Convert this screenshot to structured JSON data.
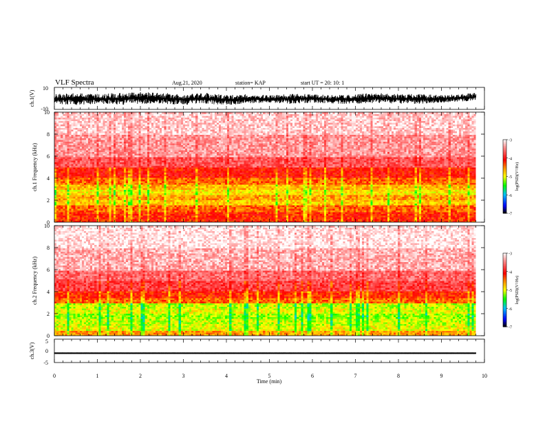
{
  "header": {
    "title": "VLF Spectra",
    "date": "Aug.21, 2020",
    "station": "station= KAP",
    "start": "start  UT =   20: 10: 1"
  },
  "colorbar": {
    "label": "log(PSD)(V²/Hz)",
    "ticks": [
      "-3",
      "-4",
      "-5",
      "-6",
      "-7"
    ],
    "colors": [
      "#ffffff",
      "#ff7f7f",
      "#ff0000",
      "#ffa000",
      "#ffff00",
      "#00ff00",
      "#00c0ff",
      "#0000ff",
      "#000000"
    ]
  },
  "chart_data": [
    {
      "type": "line",
      "name": "ch1-waveform",
      "ylabel": "ch.1(V)",
      "ylim": [
        -10,
        10
      ],
      "yticks": [
        "10",
        "-10"
      ],
      "xlim": [
        0,
        10
      ],
      "x": [
        0,
        0.5,
        1,
        1.5,
        2,
        2.5,
        3,
        3.5,
        4,
        4.5,
        5,
        5.5,
        6,
        6.5,
        7,
        7.5,
        8,
        8.5,
        9,
        9.5,
        9.8
      ],
      "envelope_upper": [
        4,
        5,
        4,
        5,
        6,
        5,
        4,
        5,
        3,
        4,
        3,
        4,
        4,
        3,
        4,
        5,
        4,
        4,
        3,
        4,
        5
      ],
      "envelope_lower": [
        -5,
        -6,
        -5,
        -6,
        -5,
        -5,
        -6,
        -5,
        -6,
        -5,
        -4,
        -5,
        -4,
        -5,
        -5,
        -4,
        -5,
        -5,
        -4,
        -3,
        -2
      ]
    },
    {
      "type": "heatmap",
      "name": "ch1-spectrogram",
      "ylabel": "ch.1 Frequency (kHz)",
      "xlim": [
        0,
        10
      ],
      "ylim": [
        0,
        10
      ],
      "yticks": [
        "0",
        "2",
        "4",
        "6",
        "8",
        "10"
      ],
      "log_psd_range": [
        -7,
        -3
      ],
      "frequency_bands_kHz": [
        0,
        1,
        1.5,
        2,
        2.5,
        3,
        3.5,
        4,
        5,
        6,
        8,
        10
      ],
      "log_psd_by_band": [
        -4.2,
        -4.4,
        -4.8,
        -4.6,
        -4.9,
        -4.7,
        -4.4,
        -4.1,
        -3.7,
        -3.4,
        -3.2
      ],
      "data_end_min": 9.8
    },
    {
      "type": "heatmap",
      "name": "ch2-spectrogram",
      "ylabel": "ch.2 Frequency (kHz)",
      "xlim": [
        0,
        10
      ],
      "ylim": [
        0,
        10
      ],
      "yticks": [
        "0",
        "2",
        "4",
        "6",
        "8",
        "10"
      ],
      "log_psd_range": [
        -7,
        -3
      ],
      "frequency_bands_kHz": [
        0,
        0.5,
        1,
        1.5,
        2,
        2.5,
        3,
        3.5,
        4,
        5,
        6,
        8,
        10
      ],
      "log_psd_by_band": [
        -4.6,
        -5.0,
        -5.1,
        -5.2,
        -5.0,
        -5.1,
        -4.4,
        -4.2,
        -3.8,
        -3.6,
        -3.3,
        -3.1
      ],
      "data_end_min": 9.8
    },
    {
      "type": "line",
      "name": "ch3-waveform",
      "ylabel": "ch.3(V)",
      "xlabel": "Time (min)",
      "ylim": [
        -5,
        5
      ],
      "yticks": [
        "5",
        "0",
        "-5"
      ],
      "xlim": [
        0,
        10
      ],
      "xticks": [
        "0",
        "1",
        "2",
        "3",
        "4",
        "5",
        "6",
        "7",
        "8",
        "9",
        "10"
      ],
      "x": [
        0,
        9.8
      ],
      "envelope_upper": [
        -0.7,
        -0.7
      ],
      "envelope_lower": [
        -1.3,
        -1.3
      ]
    }
  ]
}
